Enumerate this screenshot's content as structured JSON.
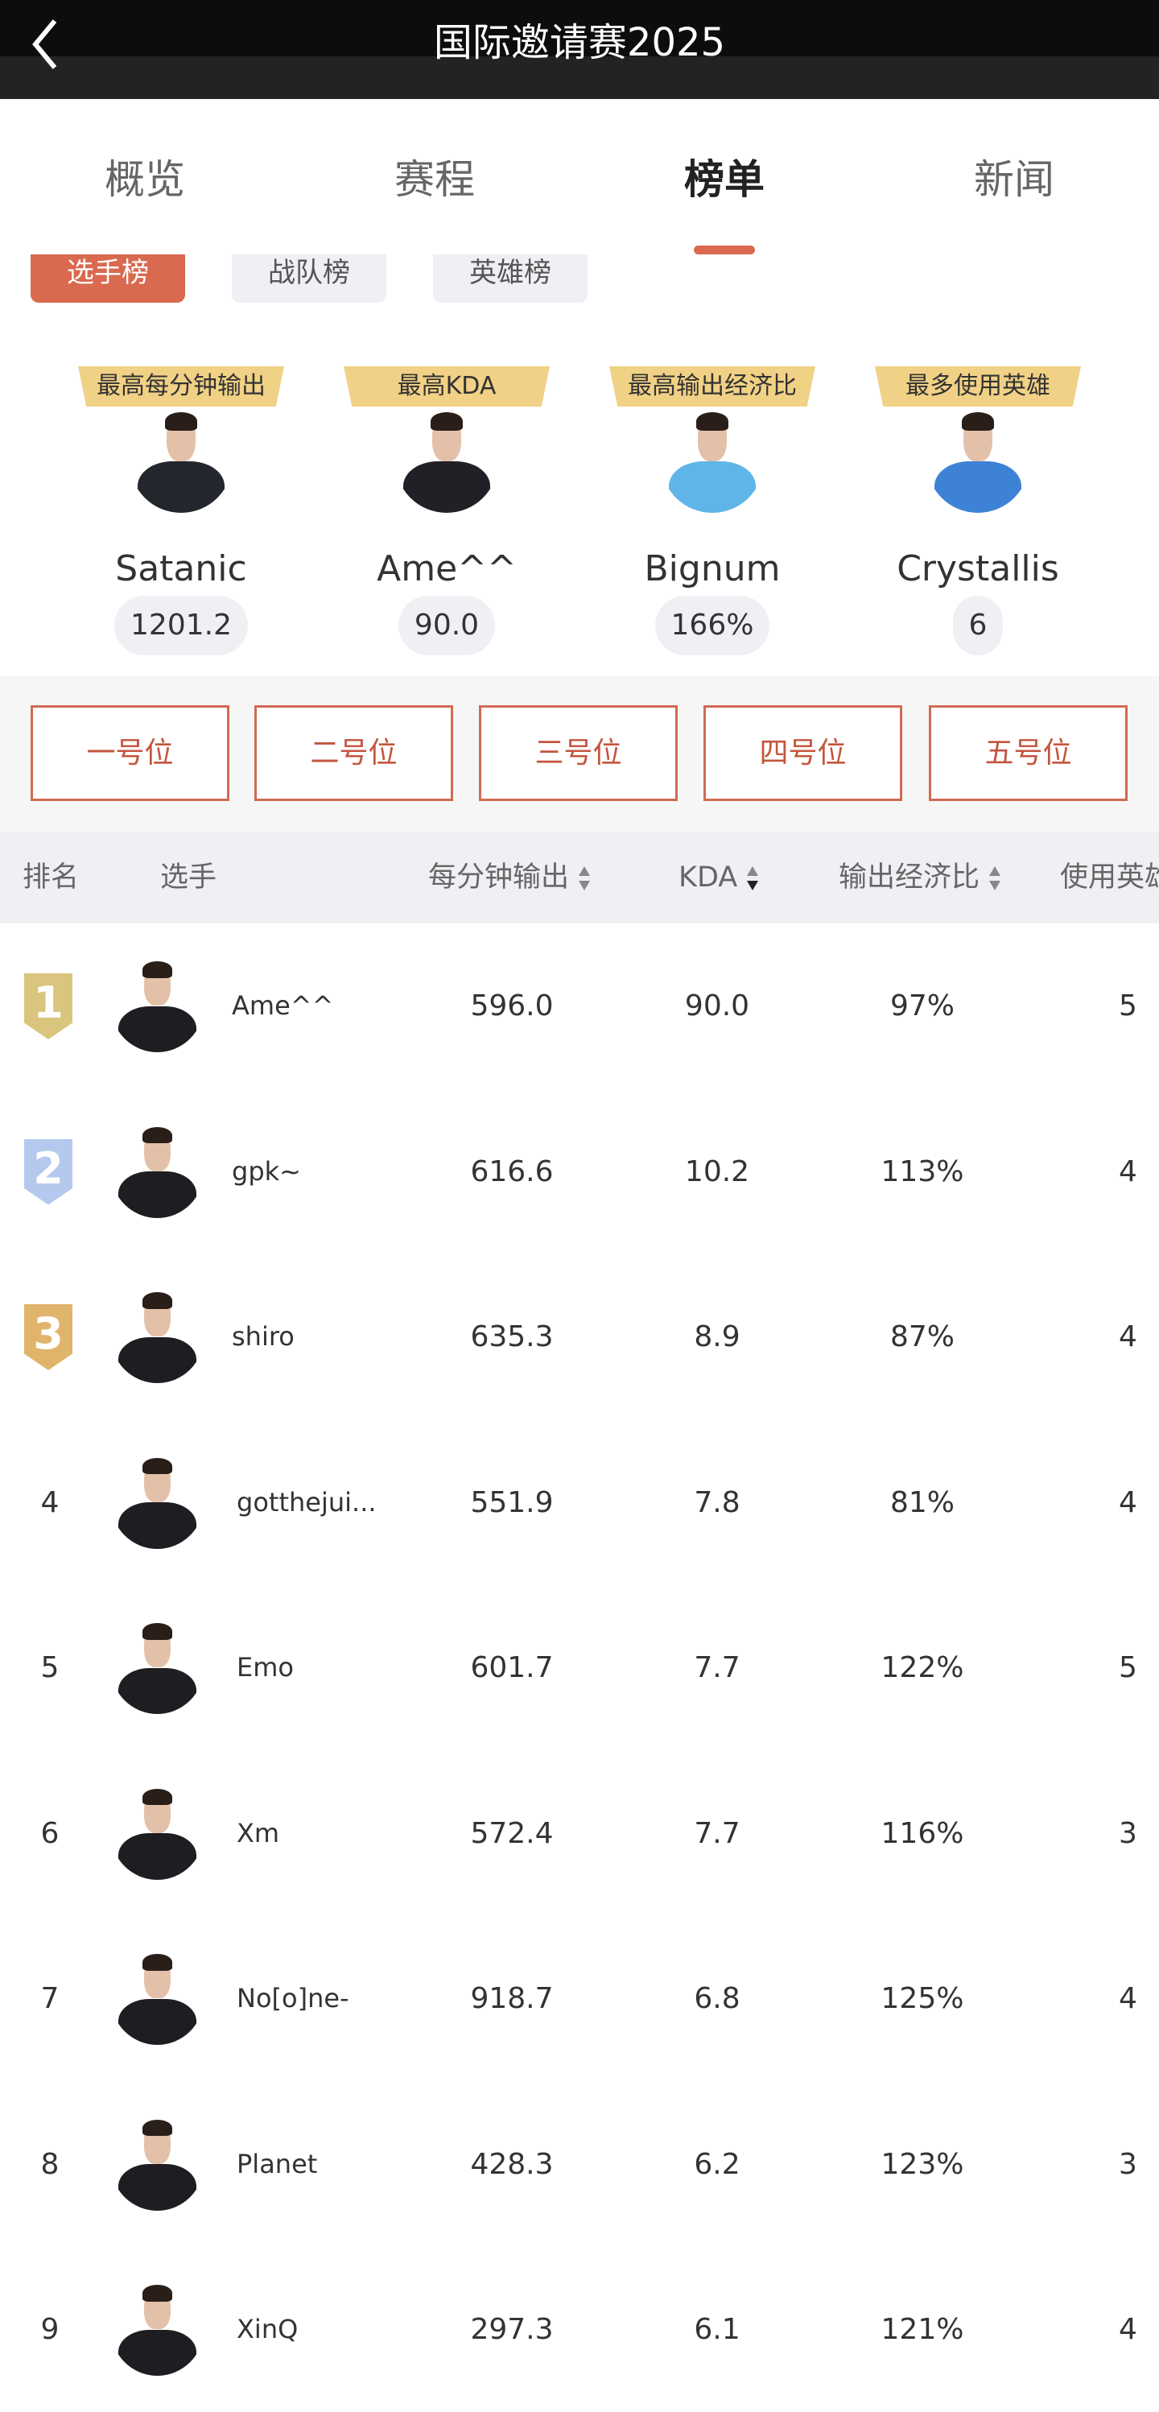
{
  "header": {
    "title": "国际邀请赛2025",
    "back_icon": "chevron-left-icon"
  },
  "tabs": [
    {
      "label": "概览"
    },
    {
      "label": "赛程"
    },
    {
      "label": "榜单",
      "active": true
    },
    {
      "label": "新闻"
    }
  ],
  "subtabs": [
    {
      "label": "选手榜",
      "active": true
    },
    {
      "label": "战队榜"
    },
    {
      "label": "英雄榜"
    }
  ],
  "leaders": [
    {
      "title": "最高每分钟输出",
      "name": "Satanic",
      "value": "1201.2",
      "shirt": "#23262c"
    },
    {
      "title": "最高KDA",
      "name": "Ame^^",
      "value": "90.0",
      "shirt": "#222026"
    },
    {
      "title": "最高输出经济比",
      "name": "Bignum",
      "value": "166%",
      "shirt": "#5fb5e8"
    },
    {
      "title": "最多使用英雄",
      "name": "Crystallis",
      "value": "6",
      "shirt": "#3e82d6"
    }
  ],
  "positions": [
    "一号位",
    "二号位",
    "三号位",
    "四号位",
    "五号位"
  ],
  "table": {
    "headers": {
      "rank": "排名",
      "player": "选手",
      "dpm": "每分钟输出",
      "kda": "KDA",
      "ratio": "输出经济比",
      "heroes": "使用英雄"
    },
    "rows": [
      {
        "rank": "1",
        "name": "Ame^^",
        "dpm": "596.0",
        "kda": "90.0",
        "ratio": "97%",
        "heroes": "5",
        "medal": "#d9c57d"
      },
      {
        "rank": "2",
        "name": "gpk~",
        "dpm": "616.6",
        "kda": "10.2",
        "ratio": "113%",
        "heroes": "4",
        "medal": "#b5c9ee"
      },
      {
        "rank": "3",
        "name": "shiro",
        "dpm": "635.3",
        "kda": "8.9",
        "ratio": "87%",
        "heroes": "4",
        "medal": "#e0b56b"
      },
      {
        "rank": "4",
        "name": "gotthejui...",
        "dpm": "551.9",
        "kda": "7.8",
        "ratio": "81%",
        "heroes": "4"
      },
      {
        "rank": "5",
        "name": "Emo",
        "dpm": "601.7",
        "kda": "7.7",
        "ratio": "122%",
        "heroes": "5"
      },
      {
        "rank": "6",
        "name": "Xm",
        "dpm": "572.4",
        "kda": "7.7",
        "ratio": "116%",
        "heroes": "3"
      },
      {
        "rank": "7",
        "name": "No[o]ne-",
        "dpm": "918.7",
        "kda": "6.8",
        "ratio": "125%",
        "heroes": "4"
      },
      {
        "rank": "8",
        "name": "Planet",
        "dpm": "428.3",
        "kda": "6.2",
        "ratio": "123%",
        "heroes": "3"
      },
      {
        "rank": "9",
        "name": "XinQ",
        "dpm": "297.3",
        "kda": "6.1",
        "ratio": "121%",
        "heroes": "4"
      }
    ]
  },
  "colors": {
    "accent": "#d9694f",
    "badge": "#f1d185"
  }
}
